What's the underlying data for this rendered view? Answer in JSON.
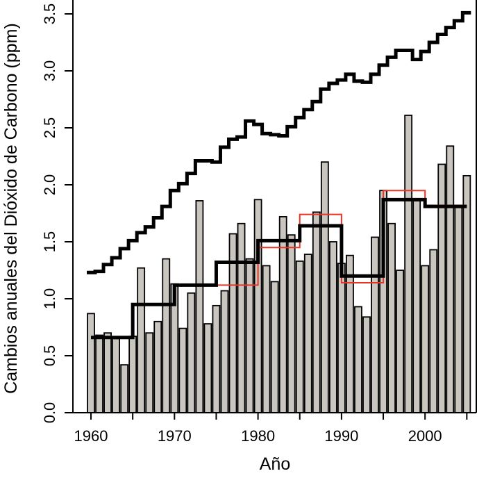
{
  "chart_data": {
    "type": "bar",
    "title": "",
    "xlabel": "Año",
    "ylabel": "Cambios anuales del Dióxido de Carbono (ppm)",
    "xlim": [
      1958,
      2007
    ],
    "ylim": [
      0,
      3.5
    ],
    "x_ticks": [
      1960,
      1970,
      1980,
      1990,
      2000
    ],
    "x_tick_labels": [
      "1960",
      "1970",
      "1980",
      "1990",
      "2000"
    ],
    "y_ticks": [
      0,
      0.5,
      1,
      1.5,
      2,
      2.5,
      3,
      3.5
    ],
    "y_tick_labels": [
      "0.0",
      "0.5",
      "1.0",
      "1.5",
      "2.0",
      "2.5",
      "3.0",
      "3.5"
    ],
    "grid": false,
    "legend": "none",
    "years": [
      1960,
      1961,
      1962,
      1963,
      1964,
      1965,
      1966,
      1967,
      1968,
      1969,
      1970,
      1971,
      1972,
      1973,
      1974,
      1975,
      1976,
      1977,
      1978,
      1979,
      1980,
      1981,
      1982,
      1983,
      1984,
      1985,
      1986,
      1987,
      1988,
      1989,
      1990,
      1991,
      1992,
      1993,
      1994,
      1995,
      1996,
      1997,
      1998,
      1999,
      2000,
      2001,
      2002,
      2003,
      2004,
      2005
    ],
    "bars": {
      "color": "#c9c6bf",
      "values": [
        0.87,
        0.68,
        0.7,
        0.65,
        0.42,
        0.67,
        1.27,
        0.7,
        0.8,
        1.35,
        1.13,
        0.74,
        1.05,
        1.86,
        0.78,
        0.94,
        1.07,
        1.57,
        1.66,
        1.35,
        1.87,
        1.29,
        1.15,
        1.72,
        1.56,
        1.33,
        1.39,
        1.76,
        2.2,
        1.5,
        1.31,
        1.38,
        0.93,
        0.84,
        1.54,
        1.95,
        1.66,
        1.25,
        2.61,
        1.86,
        1.29,
        1.43,
        2.18,
        2.34,
        1.81,
        2.08
      ]
    },
    "upper_step_line": {
      "color": "#000000",
      "values": [
        1.23,
        1.24,
        1.3,
        1.36,
        1.44,
        1.51,
        1.58,
        1.63,
        1.71,
        1.81,
        1.95,
        2.01,
        2.1,
        2.21,
        2.21,
        2.2,
        2.33,
        2.4,
        2.42,
        2.56,
        2.53,
        2.45,
        2.44,
        2.43,
        2.51,
        2.59,
        2.66,
        2.73,
        2.84,
        2.89,
        2.92,
        2.97,
        2.91,
        2.9,
        2.97,
        3.05,
        3.12,
        3.18,
        3.18,
        3.1,
        3.17,
        3.25,
        3.32,
        3.38,
        3.44,
        3.51
      ]
    },
    "five_year_means_black": {
      "color": "#000000",
      "periods": [
        [
          1960,
          1965
        ],
        [
          1965,
          1970
        ],
        [
          1970,
          1975
        ],
        [
          1975,
          1980
        ],
        [
          1980,
          1985
        ],
        [
          1985,
          1990
        ],
        [
          1990,
          1995
        ],
        [
          1995,
          2000
        ],
        [
          2000,
          2005
        ]
      ],
      "values": [
        0.66,
        0.95,
        1.12,
        1.32,
        1.51,
        1.64,
        1.2,
        1.87,
        1.81
      ]
    },
    "five_year_means_red": {
      "color": "#ee3322",
      "periods": [
        [
          1975,
          1980
        ],
        [
          1980,
          1985
        ],
        [
          1985,
          1990
        ],
        [
          1990,
          1995
        ],
        [
          1995,
          2000
        ],
        [
          2000,
          2005
        ]
      ],
      "values": [
        1.12,
        1.45,
        1.74,
        1.14,
        1.95,
        1.82
      ]
    }
  }
}
